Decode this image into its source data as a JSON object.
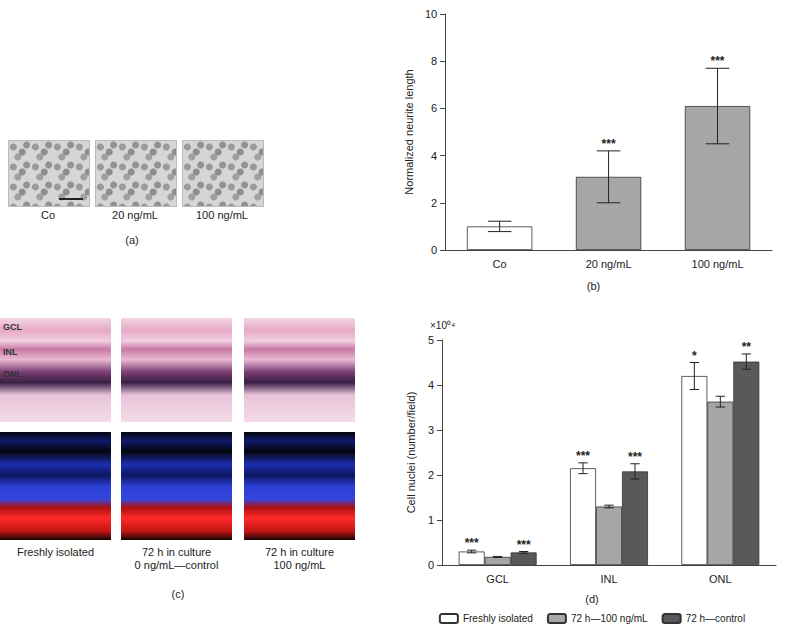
{
  "chart_data": [
    {
      "type": "bar",
      "panel": "(b)",
      "y_label": "Normalized neurite length",
      "categories": [
        "Co",
        "20 ng/mL",
        "100 ng/mL"
      ],
      "values": [
        1.0,
        3.1,
        6.1
      ],
      "errors": [
        0.22,
        1.1,
        1.6
      ],
      "significance": [
        null,
        "***",
        "***"
      ],
      "colors": [
        "#ffffff",
        "#a6a6a6",
        "#a6a6a6"
      ],
      "ylim": [
        0,
        10
      ],
      "yticks": [
        0,
        2,
        4,
        6,
        8,
        10
      ],
      "grid": false
    },
    {
      "type": "bar",
      "panel": "(d)",
      "y_label": "Cell nuclei (number/field)",
      "y_multiplier": "×10⁰⁴",
      "categories": [
        "GCL",
        "INL",
        "ONL"
      ],
      "series": [
        {
          "name": "Freshly isolated",
          "color": "#ffffff",
          "values": [
            0.3,
            2.15,
            4.2
          ],
          "errors": [
            0.03,
            0.12,
            0.3
          ],
          "significance": [
            "***",
            "***",
            "*"
          ]
        },
        {
          "name": "72 h—100 ng/mL",
          "color": "#a6a6a6",
          "values": [
            0.18,
            1.3,
            3.63
          ],
          "errors": [
            0.01,
            0.03,
            0.12
          ],
          "significance": [
            null,
            null,
            null
          ]
        },
        {
          "name": "72 h—control",
          "color": "#595959",
          "values": [
            0.28,
            2.08,
            4.52
          ],
          "errors": [
            0.02,
            0.17,
            0.17
          ],
          "significance": [
            "***",
            "***",
            "**"
          ]
        }
      ],
      "ylim": [
        0,
        5
      ],
      "yticks": [
        0,
        1,
        2,
        3,
        4,
        5
      ],
      "grid": false,
      "legend": "bottom"
    }
  ],
  "panel_a": {
    "panel": "(a)",
    "images": [
      "Co",
      "20 ng/mL",
      "100 ng/mL"
    ]
  },
  "panel_c": {
    "panel": "(c)",
    "layers": [
      "GCL",
      "INL",
      "ONL"
    ],
    "images": [
      [
        "Freshly isolated"
      ],
      [
        "72 h in culture",
        "0 ng/mL—control"
      ],
      [
        "72 h in culture",
        "100 ng/mL"
      ]
    ]
  }
}
